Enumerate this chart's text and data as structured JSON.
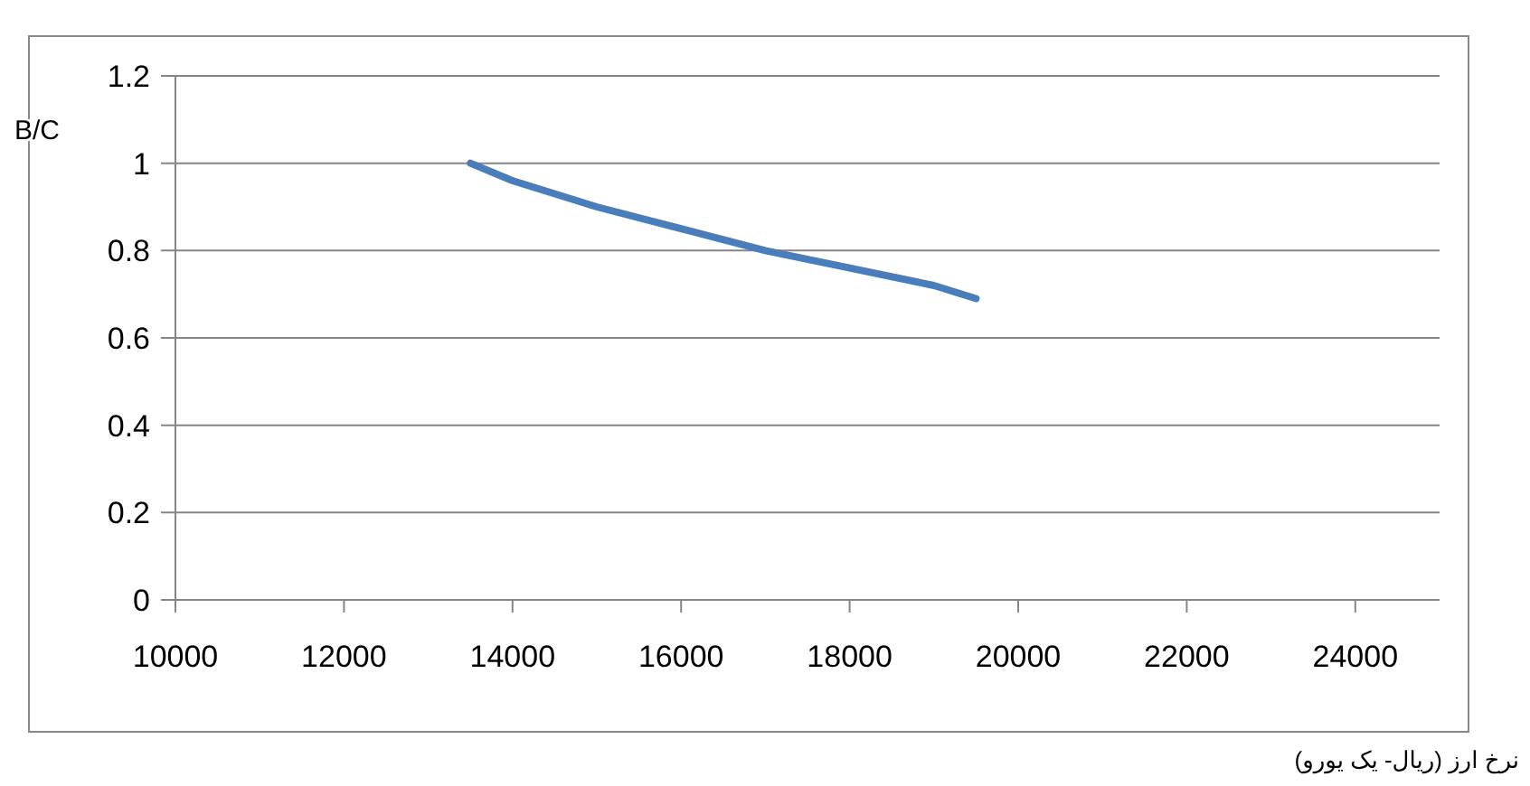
{
  "chart_data": {
    "type": "line",
    "xlabel": "نرخ ارز (ریال- یک یورو)",
    "ylabel": "B/C",
    "x": [
      13500,
      14000,
      15000,
      16000,
      17000,
      18000,
      19000,
      19500
    ],
    "series": [
      {
        "color": "#4a7ebb",
        "values": [
          1.0,
          0.96,
          0.9,
          0.85,
          0.8,
          0.76,
          0.72,
          0.69
        ]
      }
    ],
    "xlim": [
      10000,
      25000
    ],
    "xticks": [
      10000,
      12000,
      14000,
      16000,
      18000,
      20000,
      22000,
      24000
    ],
    "ylim": [
      0,
      1.2
    ],
    "yticks": [
      0,
      0.2,
      0.4,
      0.6,
      0.8,
      1,
      1.2
    ],
    "grid": "y"
  }
}
